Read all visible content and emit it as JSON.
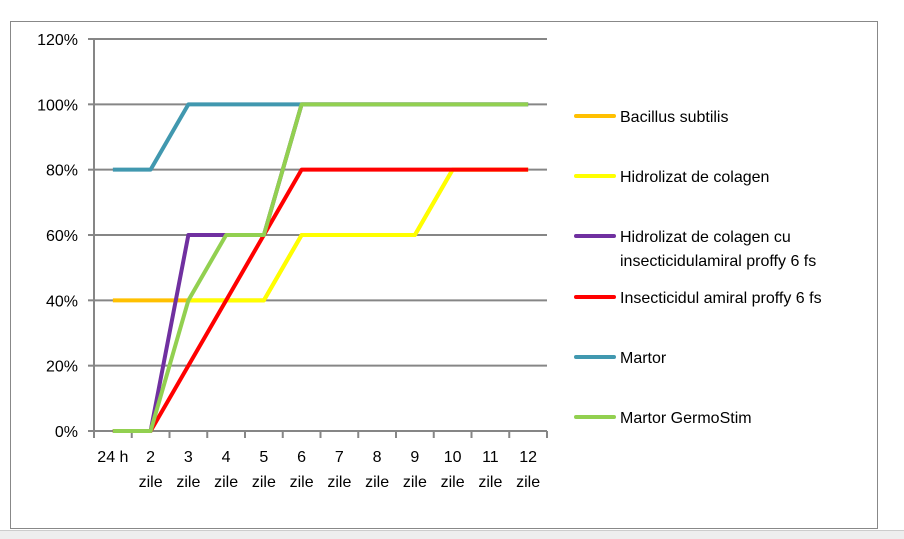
{
  "chart_data": {
    "type": "line",
    "title": "",
    "xlabel": "",
    "ylabel": "",
    "categories": [
      [
        "24 h",
        ""
      ],
      [
        "2",
        "zile"
      ],
      [
        "3",
        "zile"
      ],
      [
        "4",
        "zile"
      ],
      [
        "5",
        "zile"
      ],
      [
        "6",
        "zile"
      ],
      [
        "7",
        "zile"
      ],
      [
        "8",
        "zile"
      ],
      [
        "9",
        "zile"
      ],
      [
        "10",
        "zile"
      ],
      [
        "11",
        "zile"
      ],
      [
        "12",
        "zile"
      ]
    ],
    "yticks": [
      "0%",
      "20%",
      "40%",
      "60%",
      "80%",
      "100%",
      "120%"
    ],
    "ylim": [
      0,
      120
    ],
    "grid": true,
    "legend_position": "right",
    "series": [
      {
        "name": "Bacillus subtilis",
        "color": "#FFC000",
        "values": [
          40,
          40,
          40,
          40,
          40,
          60,
          60,
          60,
          60,
          80,
          80,
          80
        ]
      },
      {
        "name": "Hidrolizat de colagen",
        "color": "#FFFF00",
        "values": [
          null,
          null,
          40,
          40,
          40,
          60,
          60,
          60,
          60,
          80,
          80,
          80
        ]
      },
      {
        "name": "Hidrolizat de colagen cu insecticidulamiral proffy 6 fs",
        "color": "#7030A0",
        "values": [
          0,
          0,
          60,
          60,
          60,
          100,
          100,
          100,
          100,
          100,
          100,
          100
        ]
      },
      {
        "name": "Insecticidul amiral proffy 6 fs",
        "color": "#FF0000",
        "values": [
          0,
          0,
          20,
          40,
          60,
          80,
          80,
          80,
          80,
          80,
          80,
          80
        ]
      },
      {
        "name": "Martor",
        "color": "#4198AF",
        "values": [
          80,
          80,
          100,
          100,
          100,
          100,
          100,
          100,
          100,
          100,
          100,
          100
        ]
      },
      {
        "name": "Martor GermoStim",
        "color": "#92D050",
        "values": [
          0,
          0,
          40,
          60,
          60,
          100,
          100,
          100,
          100,
          100,
          100,
          100
        ]
      }
    ]
  }
}
